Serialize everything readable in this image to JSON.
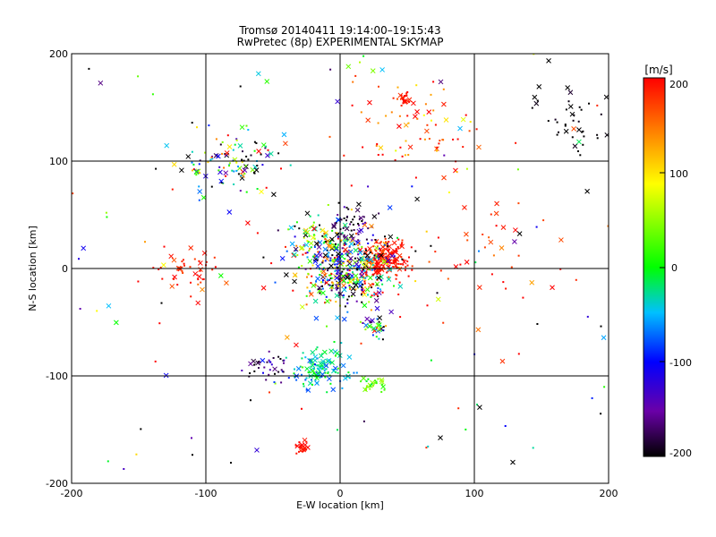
{
  "chart_data": {
    "type": "scatter",
    "title": "Tromsø 20140411 19:14:00–19:15:43",
    "subtitle": "RwPretec (8p) EXPERIMENTAL SKYMAP",
    "xlabel": "E-W location [km]",
    "ylabel": "N-S location [km]",
    "xlim": [
      -200,
      200
    ],
    "ylim": [
      -200,
      200
    ],
    "xticks": [
      "-200",
      "-100",
      "0",
      "100",
      "200"
    ],
    "yticks": [
      "-200",
      "-100",
      "0",
      "100",
      "200"
    ],
    "grid": true,
    "colorbar": {
      "label": "[m/s]",
      "range": [
        -200,
        200
      ],
      "ticks": [
        "200",
        "100",
        "0",
        "-100",
        "-200"
      ],
      "colormap": [
        "#000000",
        "#6a00a8",
        "#0000ff",
        "#00c0ff",
        "#00ff00",
        "#ffff00",
        "#ff0000"
      ]
    },
    "markers": [
      "x",
      "dot"
    ],
    "clusters": [
      {
        "x": 35,
        "y": 8,
        "spread": 9,
        "count": 180,
        "v": 190,
        "vspread": 15
      },
      {
        "x": 5,
        "y": 0,
        "spread": 18,
        "count": 420,
        "v": -20,
        "vspread": 150
      },
      {
        "x": -15,
        "y": -95,
        "spread": 10,
        "count": 120,
        "v": -30,
        "vspread": 30
      },
      {
        "x": -80,
        "y": 100,
        "spread": 18,
        "count": 110,
        "v": -40,
        "vspread": 140
      },
      {
        "x": -20,
        "y": 25,
        "spread": 12,
        "count": 60,
        "v": 20,
        "vspread": 120
      },
      {
        "x": 48,
        "y": 158,
        "spread": 3,
        "count": 25,
        "v": 190,
        "vspread": 10
      },
      {
        "x": -27,
        "y": -165,
        "spread": 3,
        "count": 22,
        "v": 195,
        "vspread": 5
      },
      {
        "x": 25,
        "y": -107,
        "spread": 4,
        "count": 30,
        "v": 30,
        "vspread": 20
      },
      {
        "x": 25,
        "y": -55,
        "spread": 6,
        "count": 35,
        "v": -60,
        "vspread": 140
      },
      {
        "x": -115,
        "y": 0,
        "spread": 12,
        "count": 45,
        "v": 185,
        "vspread": 15
      },
      {
        "x": 60,
        "y": 130,
        "spread": 25,
        "count": 70,
        "v": 170,
        "vspread": 40
      },
      {
        "x": 175,
        "y": 140,
        "spread": 15,
        "count": 40,
        "v": -200,
        "vspread": 5
      },
      {
        "x": -55,
        "y": -90,
        "spread": 8,
        "count": 35,
        "v": -160,
        "vspread": 40
      },
      {
        "x": 110,
        "y": 10,
        "spread": 25,
        "count": 40,
        "v": 180,
        "vspread": 30
      },
      {
        "x": 10,
        "y": 40,
        "spread": 10,
        "count": 55,
        "v": -180,
        "vspread": 30
      },
      {
        "x": 0,
        "y": 0,
        "spread": 160,
        "count": 230,
        "v": 0,
        "vspread": 210
      }
    ]
  }
}
